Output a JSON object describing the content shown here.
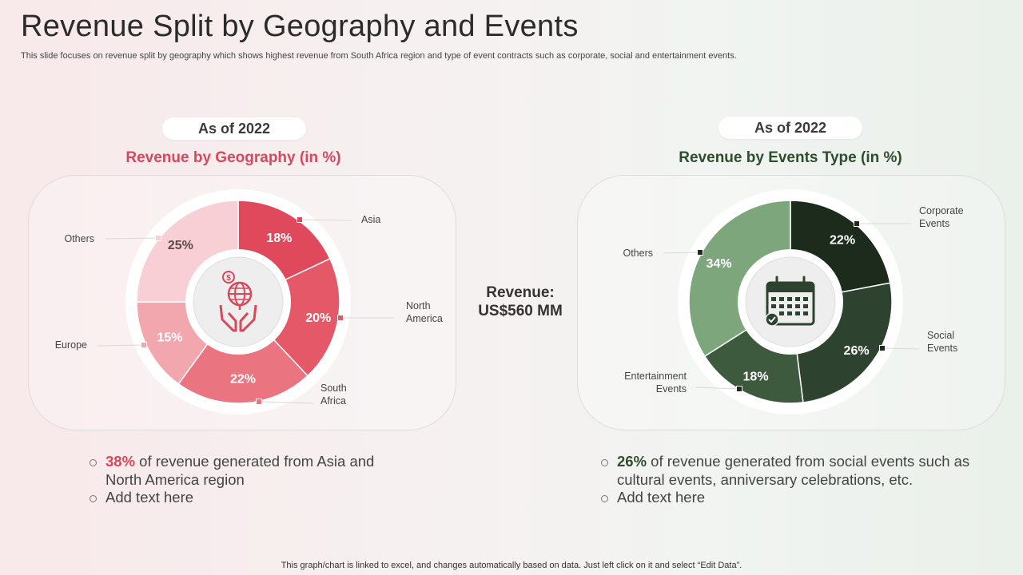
{
  "header": {
    "title": "Revenue Split by Geography and Events",
    "subtitle": "This slide focuses on revenue split by geography which shows highest revenue from South Africa region and type  of event contracts such as corporate, social and entertainment events."
  },
  "left": {
    "badge": "As of 2022",
    "chart_title": "Revenue by Geography (in %)",
    "bullets": [
      {
        "highlight": "38%",
        "text": " of revenue generated from Asia and North America region"
      },
      {
        "highlight": "",
        "text": "Add text here"
      }
    ]
  },
  "right": {
    "badge": "As of 2022",
    "chart_title": "Revenue by Events Type (in %)",
    "bullets": [
      {
        "highlight": "26%",
        "text": " of revenue generated from social events such as cultural events, anniversary  celebrations, etc."
      },
      {
        "highlight": "",
        "text": "Add text here"
      }
    ]
  },
  "revenue": {
    "label": "Revenue:",
    "value": "US$560 MM"
  },
  "footer": "This graph/chart is linked to excel,  and changes automatically based on data. Just left click on it and select “Edit Data”.",
  "colors": {
    "red_accent": "#d9475a",
    "green_accent": "#2e4d2e"
  },
  "icons": {
    "left_center": "globe-money-hands-icon",
    "right_center": "calendar-check-icon"
  },
  "chart_data": [
    {
      "type": "pie",
      "title": "Revenue by Geography (in %)",
      "categories": [
        "Asia",
        "North America",
        "South Africa",
        "Europe",
        "Others"
      ],
      "values": [
        18,
        20,
        22,
        15,
        25
      ],
      "labels": [
        "18%",
        "20%",
        "22%",
        "15%",
        "25%"
      ],
      "category_labels": [
        "Asia",
        "North\nAmerica",
        "South\nAfrica",
        "Europe",
        "Others"
      ],
      "colors": [
        "#e0495c",
        "#e45868",
        "#ea7581",
        "#f2a6ae",
        "#f7cfd4"
      ],
      "label_colors": [
        "#ffffff",
        "#ffffff",
        "#ffffff",
        "#ffffff",
        "#5a4a4a"
      ]
    },
    {
      "type": "pie",
      "title": "Revenue by Events Type (in %)",
      "categories": [
        "Corporate Events",
        "Social Events",
        "Entertainment Events",
        "Others"
      ],
      "values": [
        22,
        26,
        18,
        34
      ],
      "labels": [
        "22%",
        "26%",
        "18%",
        "34%"
      ],
      "category_labels": [
        "Corporate\nEvents",
        "Social\nEvents",
        "Entertainment\nEvents",
        "Others"
      ],
      "colors": [
        "#1d2b1d",
        "#2e4230",
        "#3d5a3e",
        "#7ea67c"
      ],
      "label_colors": [
        "#ffffff",
        "#ffffff",
        "#ffffff",
        "#ffffff"
      ]
    }
  ]
}
